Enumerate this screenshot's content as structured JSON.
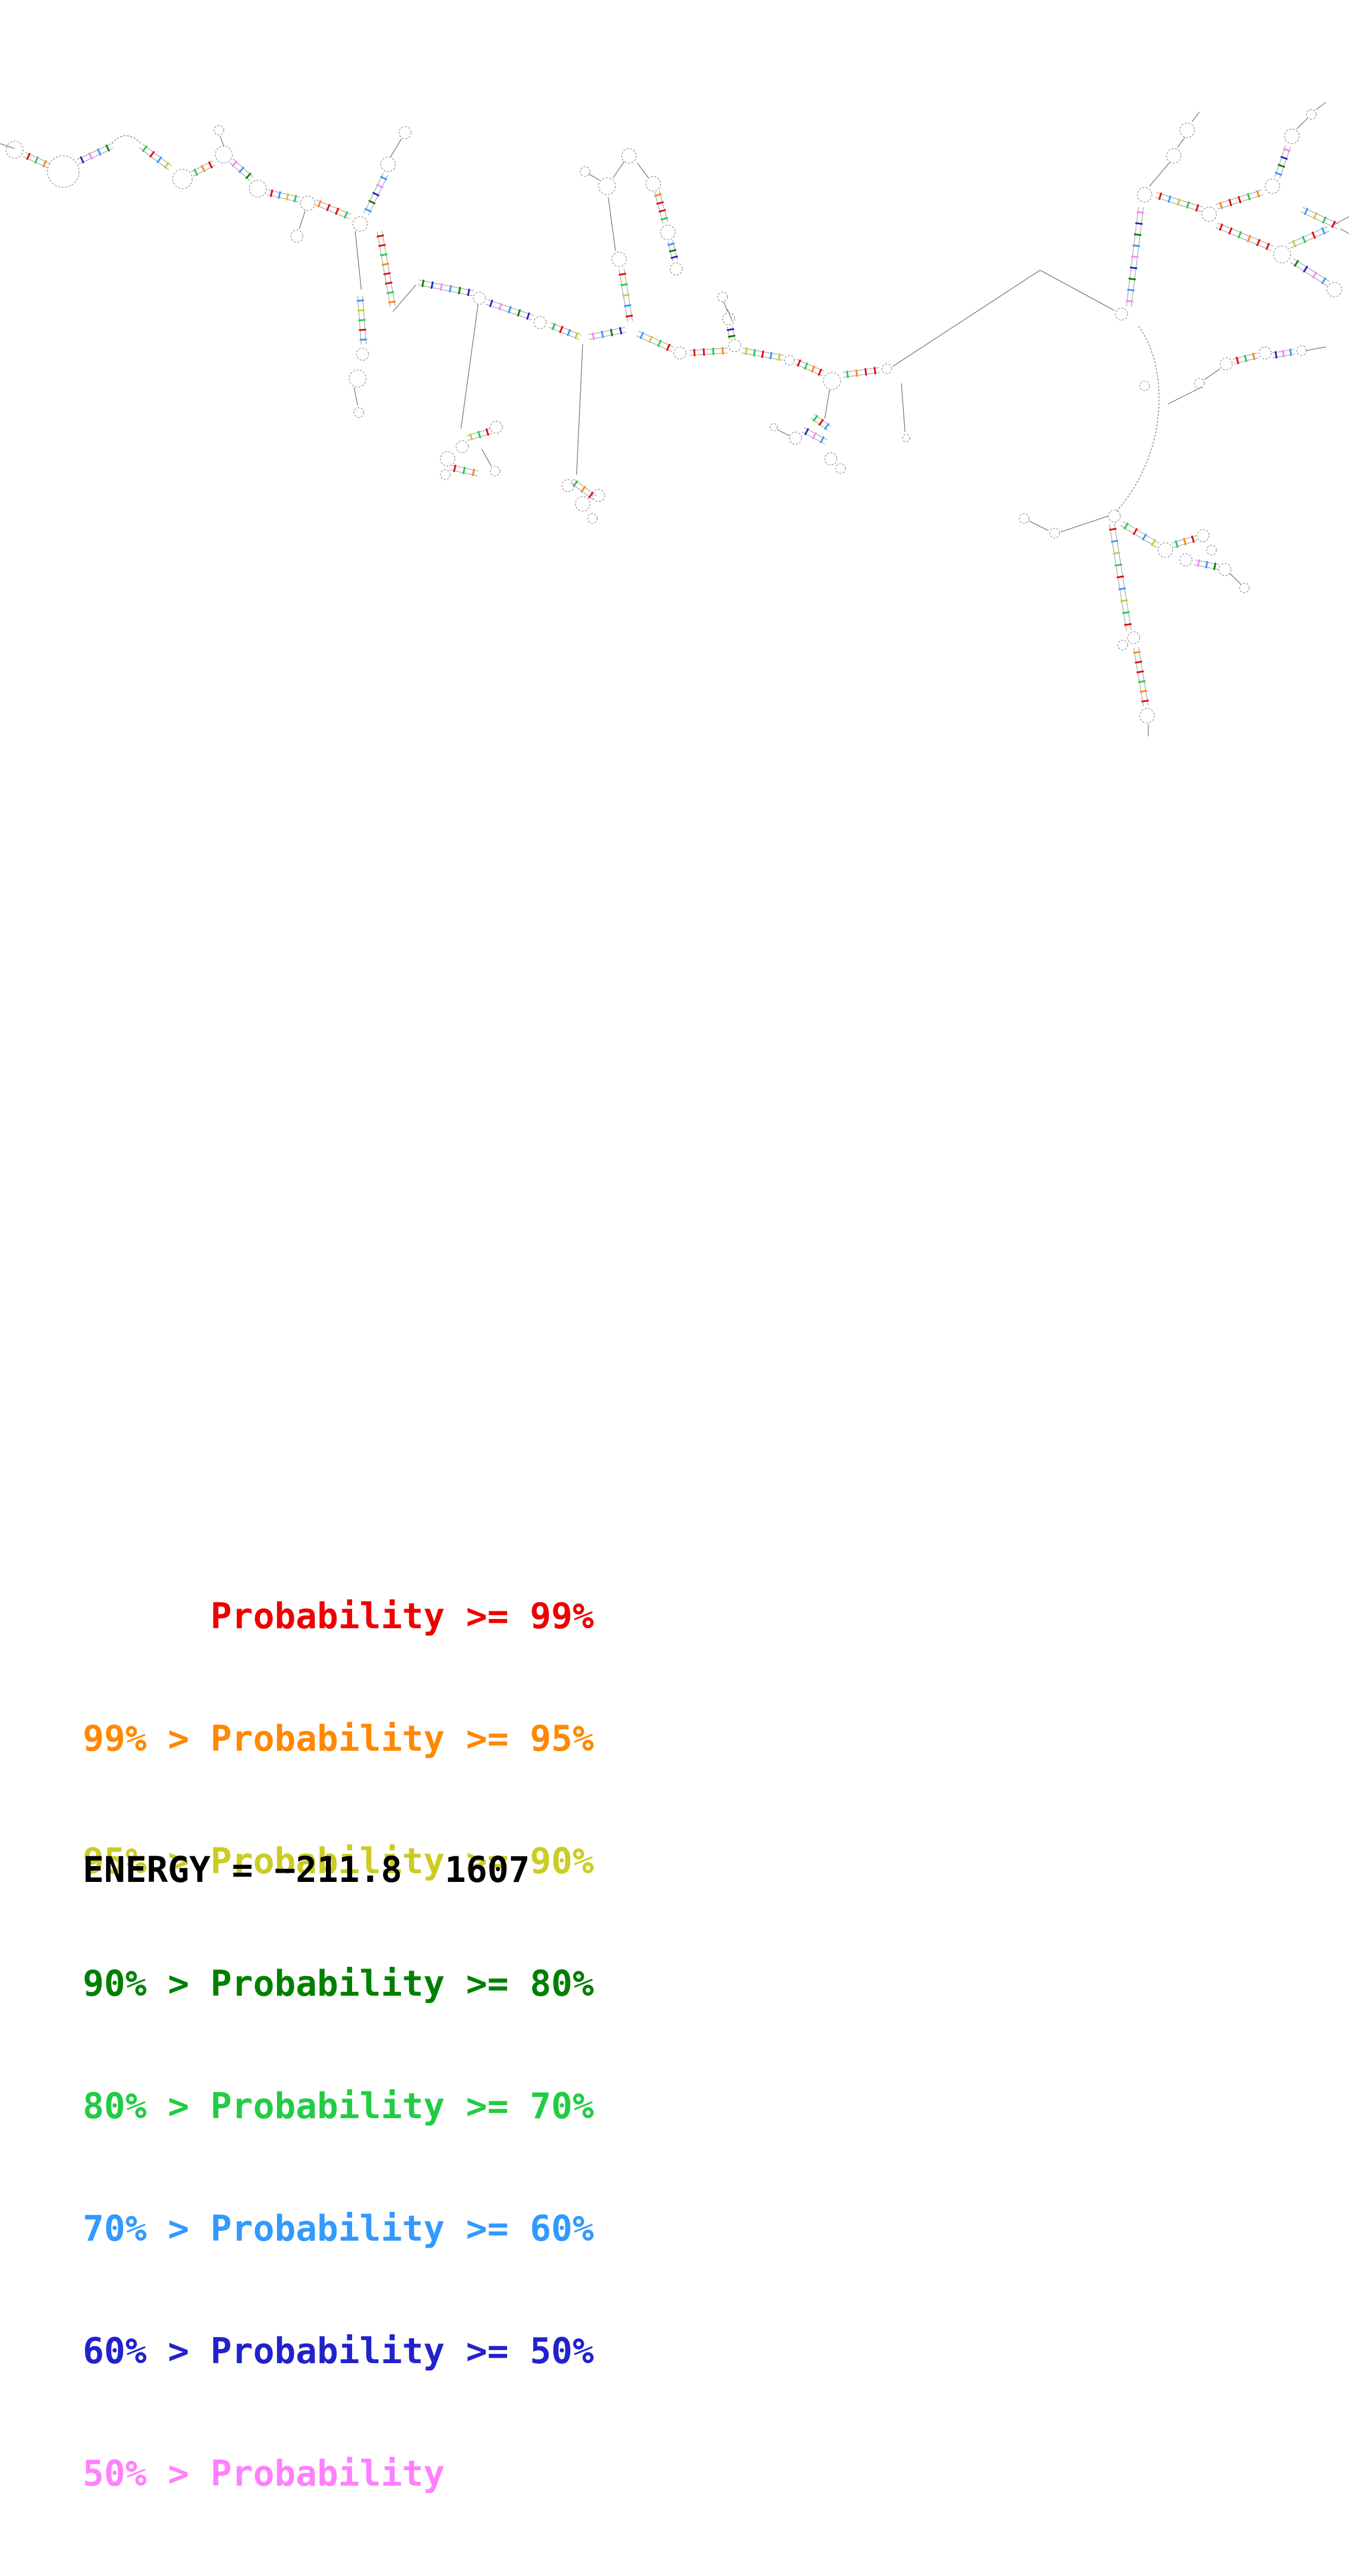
{
  "legend": {
    "entries": [
      {
        "label": "      Probability >= 99%",
        "color": "#ee0000"
      },
      {
        "label": "99% > Probability >= 95%",
        "color": "#ff8800"
      },
      {
        "label": "95% > Probability >= 90%",
        "color": "#cccc22"
      },
      {
        "label": "90% > Probability >= 80%",
        "color": "#008000"
      },
      {
        "label": "80% > Probability >= 70%",
        "color": "#22cc44"
      },
      {
        "label": "70% > Probability >= 60%",
        "color": "#3399ff"
      },
      {
        "label": "60% > Probability >= 50%",
        "color": "#2222cc"
      },
      {
        "label": "50% > Probability",
        "color": "#ff80ff"
      }
    ]
  },
  "footer": {
    "energy_label": "ENERGY = −211.8  1607"
  },
  "diagram": {
    "type": "rna-secondary-structure",
    "palette": [
      "#ee0000",
      "#ff8800",
      "#cccc22",
      "#008000",
      "#22cc44",
      "#3399ff",
      "#2222cc",
      "#ff80ff"
    ],
    "backbone_color": "#777777",
    "loop_color": "#888888"
  }
}
